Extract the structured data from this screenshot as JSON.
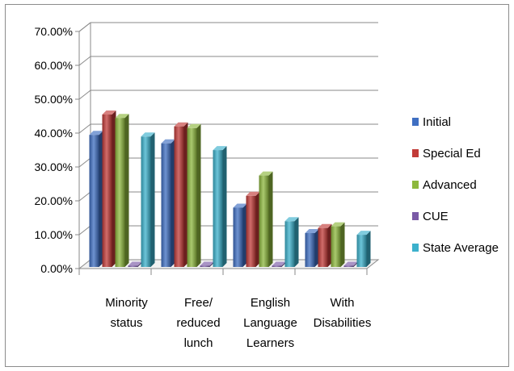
{
  "chart_data": {
    "type": "bar",
    "title": "",
    "xlabel": "",
    "ylabel": "",
    "ylim": [
      0,
      0.7
    ],
    "yticks": [
      "0.00%",
      "10.00%",
      "20.00%",
      "30.00%",
      "40.00%",
      "50.00%",
      "60.00%",
      "70.00%"
    ],
    "grid": true,
    "legend_position": "right",
    "categories": [
      [
        "Minority",
        "status"
      ],
      [
        "Free/",
        "reduced",
        "lunch"
      ],
      [
        "English",
        "Language",
        "Learners"
      ],
      [
        "With",
        "Disabilities"
      ]
    ],
    "series": [
      {
        "name": "Initial",
        "color": "#3f6fc2",
        "values": [
          0.39,
          0.365,
          0.175,
          0.1
        ]
      },
      {
        "name": "Special Ed",
        "color": "#c23b38",
        "values": [
          0.45,
          0.415,
          0.21,
          0.115
        ]
      },
      {
        "name": "Advanced",
        "color": "#8db83d",
        "values": [
          0.44,
          0.41,
          0.27,
          0.12
        ]
      },
      {
        "name": "CUE",
        "color": "#7a5aa6",
        "values": [
          0.0,
          0.0,
          0.0,
          0.0
        ]
      },
      {
        "name": "State Average",
        "color": "#3cb1cc",
        "values": [
          0.385,
          0.345,
          0.135,
          0.095
        ]
      }
    ]
  }
}
